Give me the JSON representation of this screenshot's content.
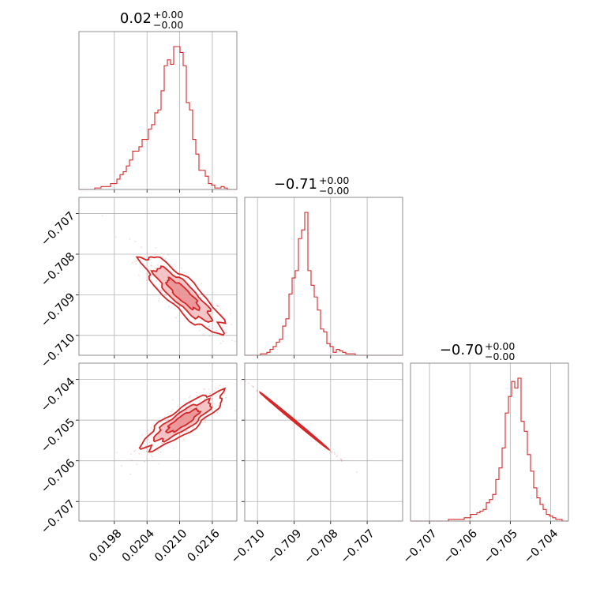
{
  "colors": {
    "accent": "#d62728",
    "fill": "#f2b3b5",
    "grid": "#b0b0b0",
    "frame": "#808080"
  },
  "chart_data": {
    "type": "corner",
    "parameters": [
      {
        "title_value": "0.02",
        "title_plus": "+0.00",
        "title_minus": "−0.00"
      },
      {
        "title_value": "−0.71",
        "title_plus": "+0.00",
        "title_minus": "−0.00"
      },
      {
        "title_value": "−0.70",
        "title_plus": "+0.00",
        "title_minus": "−0.00"
      }
    ],
    "x_ranges": [
      [
        0.01915,
        0.02205
      ],
      [
        -0.71035,
        -0.70603
      ],
      [
        -0.70747,
        -0.70356
      ]
    ],
    "y_ranges": {
      "row1": [
        -0.71049,
        -0.7066
      ],
      "row2": [
        -0.70748,
        -0.7036
      ]
    },
    "tick_labels": {
      "p0": [
        "0.0198",
        "0.0204",
        "0.0210",
        "0.0216"
      ],
      "p1": [
        "−0.710",
        "−0.709",
        "−0.708",
        "−0.707"
      ],
      "p1_y": [
        "−0.707",
        "−0.708",
        "−0.709",
        "−0.710"
      ],
      "p2": [
        "−0.707",
        "−0.706",
        "−0.705",
        "−0.704"
      ],
      "p2_y": [
        "−0.704",
        "−0.705",
        "−0.706",
        "−0.707"
      ]
    },
    "tick_values": {
      "p0": [
        0.0198,
        0.0204,
        0.021,
        0.0216
      ],
      "p1": [
        -0.71,
        -0.709,
        -0.708,
        -0.707
      ],
      "p2": [
        -0.707,
        -0.706,
        -0.705,
        -0.704
      ]
    },
    "hist_p0": {
      "bins_start": 0.01915,
      "bin_width": 5.8e-05,
      "counts": [
        0,
        0,
        0,
        0,
        0,
        1,
        1,
        2,
        2,
        2,
        4,
        4,
        7,
        10,
        12,
        16,
        20,
        26,
        26,
        29,
        34,
        34,
        41,
        44,
        52,
        54,
        67,
        84,
        88,
        85,
        97,
        97,
        93,
        84,
        59,
        54,
        34,
        24,
        13,
        13,
        9,
        4,
        3,
        1,
        1,
        2,
        1,
        0,
        0,
        0
      ]
    },
    "hist_p1": {
      "bins_start": -0.71035,
      "bin_width": 8.64e-05,
      "counts": [
        0,
        0,
        0,
        0,
        0,
        1,
        1,
        2,
        4,
        6,
        9,
        11,
        20,
        25,
        42,
        53,
        58,
        80,
        86,
        98,
        58,
        48,
        40,
        31,
        18,
        16,
        8,
        6,
        2,
        4,
        3,
        2,
        1,
        1,
        1,
        0,
        0,
        0,
        0,
        0,
        0,
        0,
        0,
        0,
        0,
        0,
        0,
        0,
        0,
        0
      ]
    },
    "hist_p2": {
      "bins_start": -0.70747,
      "bin_width": 7.82e-05,
      "counts": [
        0,
        0,
        0,
        0,
        0,
        0,
        0,
        0,
        0,
        0,
        0,
        0,
        1,
        1,
        1,
        1,
        1,
        2,
        2,
        4,
        4,
        5,
        6,
        7,
        11,
        13,
        16,
        25,
        32,
        44,
        65,
        75,
        84,
        80,
        86,
        60,
        54,
        40,
        30,
        20,
        14,
        10,
        7,
        4,
        3,
        2,
        1,
        1,
        0,
        0
      ]
    },
    "corr_p0_p1": -0.86,
    "corr_p0_p2": 0.86,
    "corr_p1_p2": -0.999,
    "centers": {
      "p0": 0.02106,
      "p1": -0.70899,
      "p2": -0.70502
    },
    "sigmas": {
      "p0": 0.00037,
      "p1": 0.00047,
      "p2": 0.00035
    },
    "grid": true
  }
}
